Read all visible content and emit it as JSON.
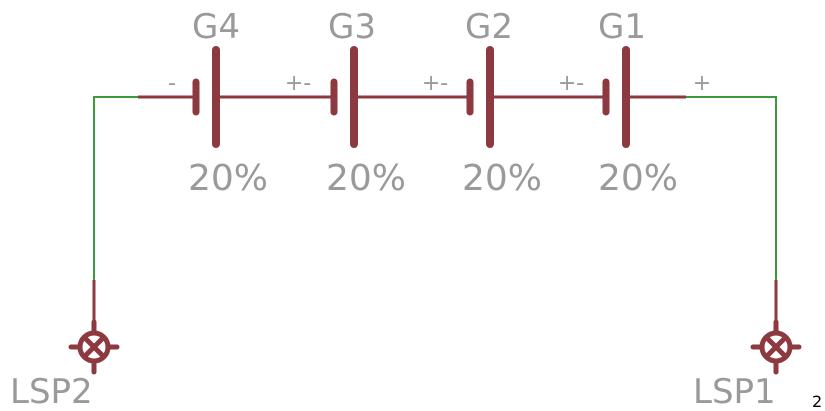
{
  "cells": [
    {
      "name": "G4",
      "pct": "20%",
      "pol": "-"
    },
    {
      "name": "G3",
      "pct": "20%",
      "pol": "+-"
    },
    {
      "name": "G2",
      "pct": "20%",
      "pol": "+-"
    },
    {
      "name": "G1",
      "pct": "20%",
      "pol": "+-"
    }
  ],
  "end_polarity": "+",
  "pads": {
    "left": "LSP2",
    "right": "LSP1"
  },
  "corner_mark": "2",
  "colors": {
    "wire_red": "#8c3a3f",
    "wire_green": "#3b9a3b",
    "label_gray": "#9a9a9a"
  }
}
